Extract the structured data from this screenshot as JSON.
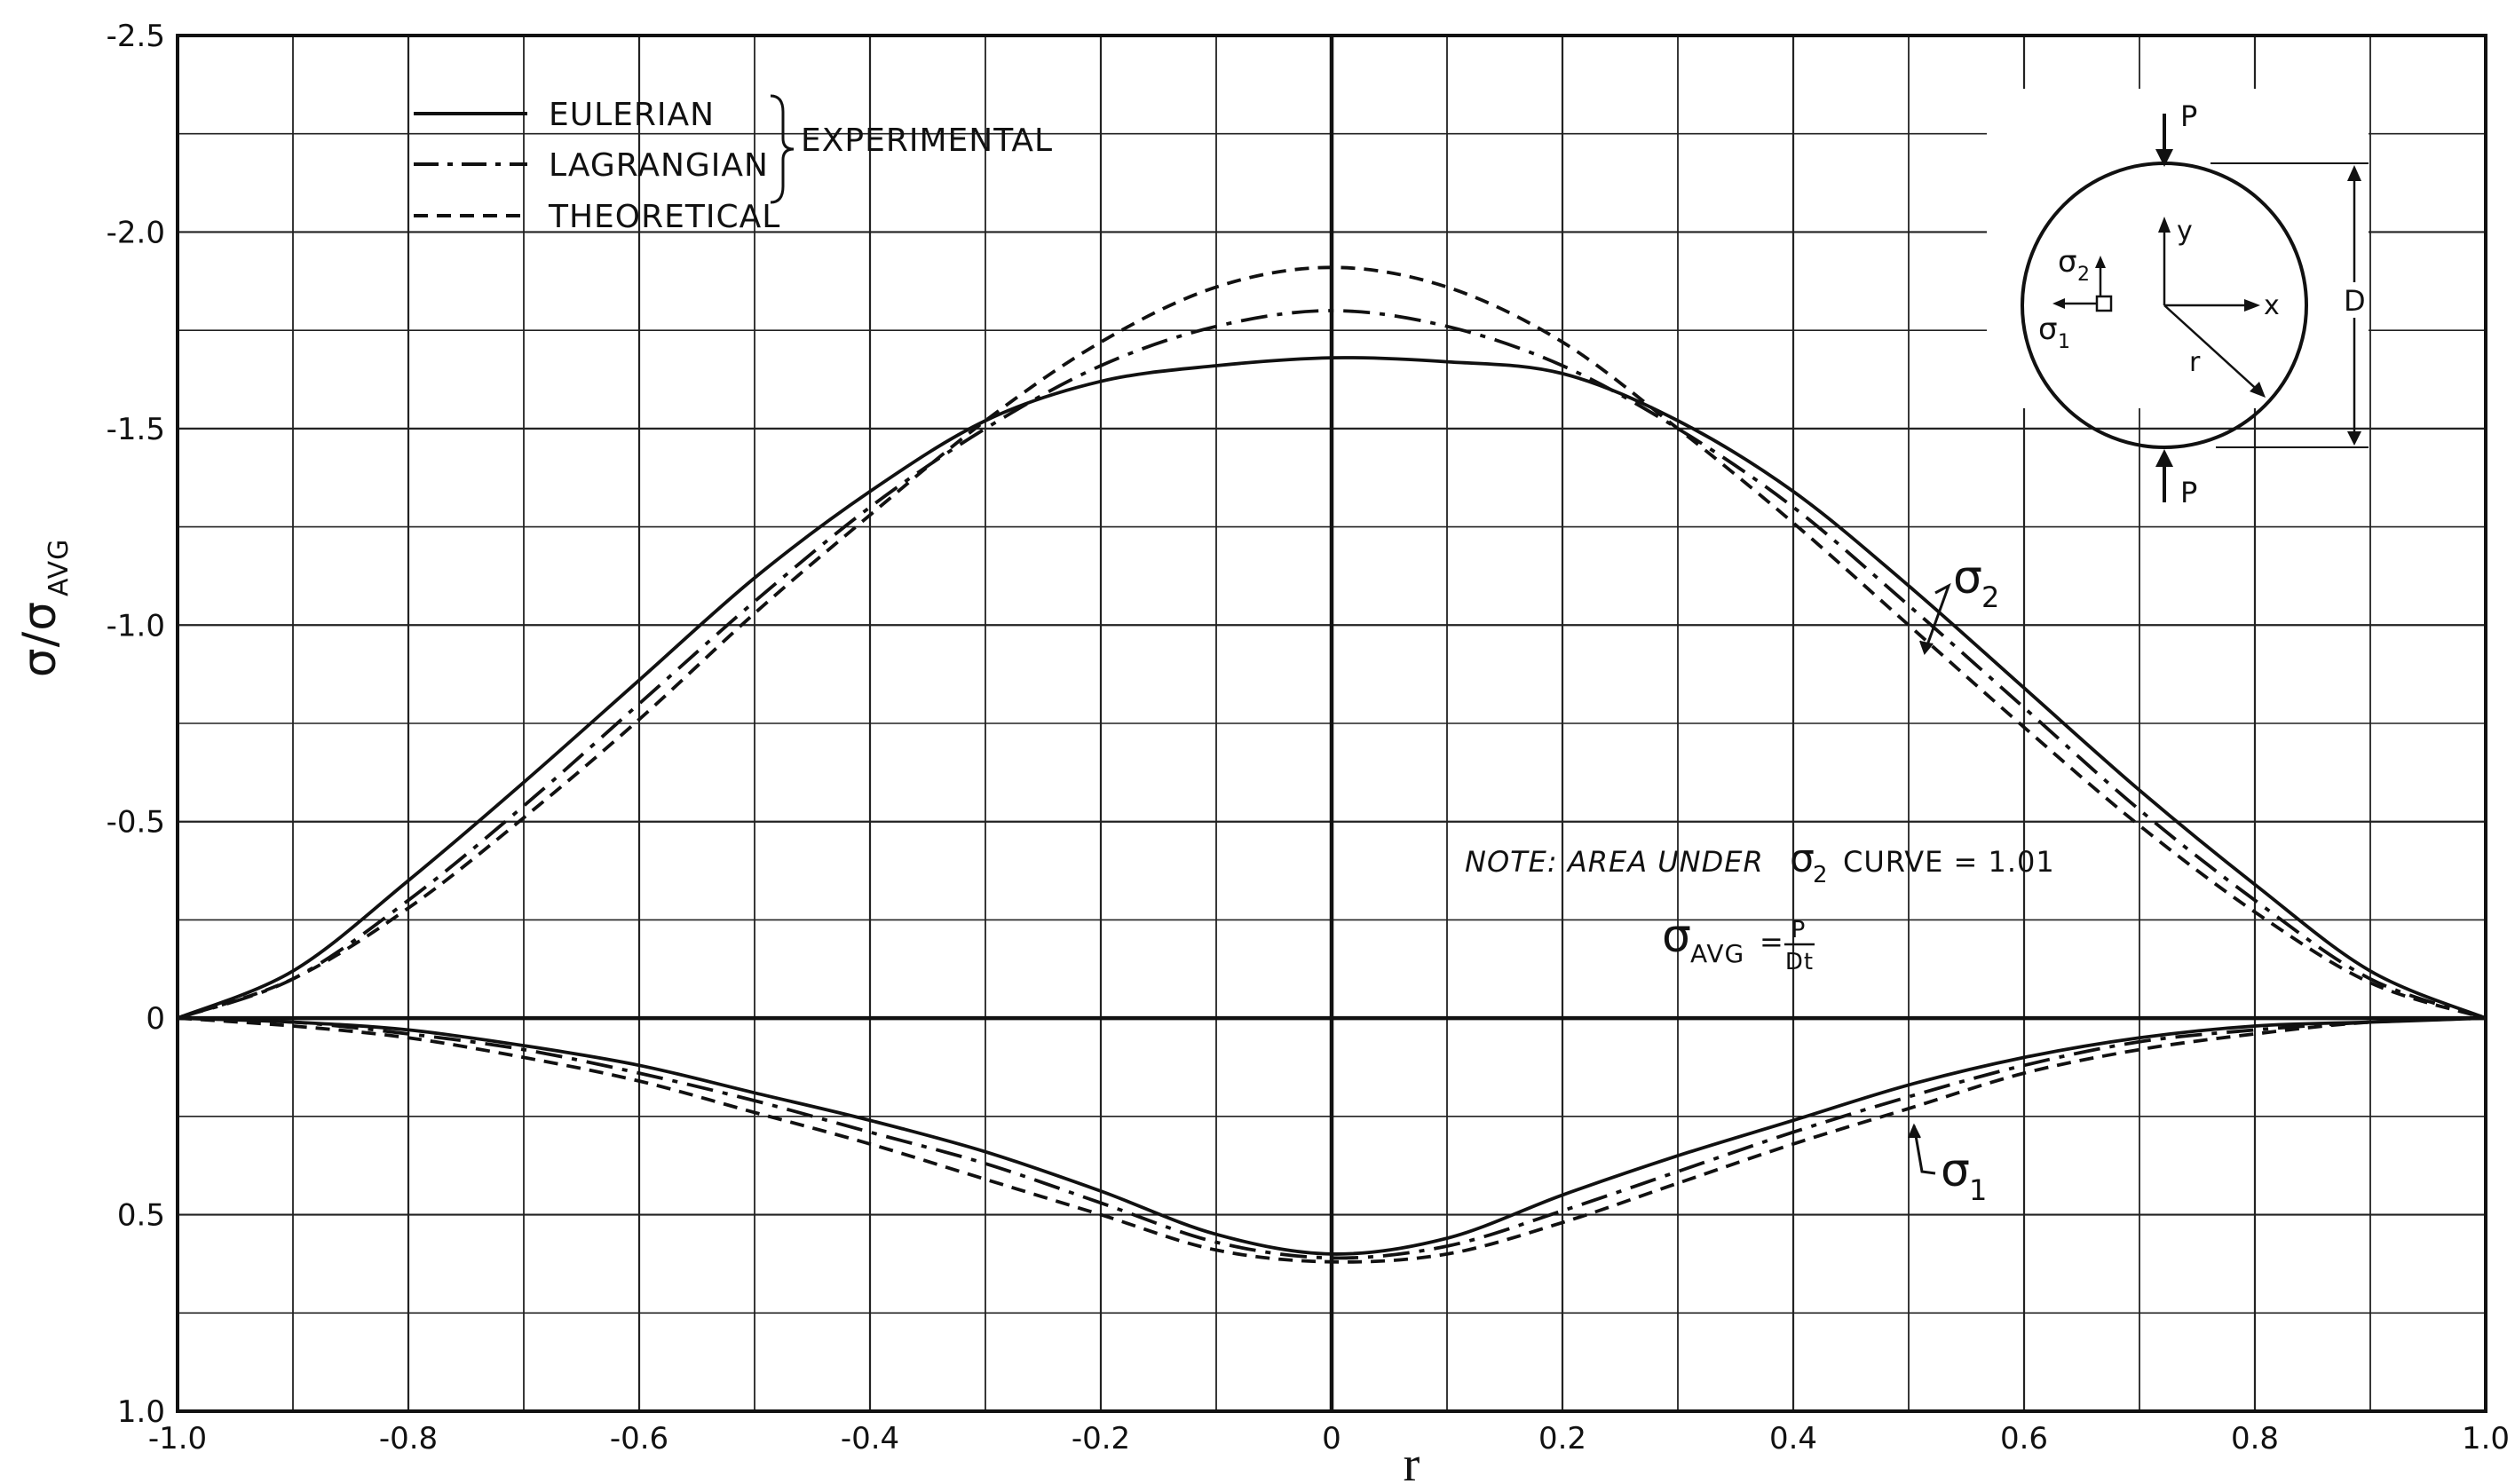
{
  "chart_data": {
    "type": "line",
    "title": "",
    "xlabel": "r",
    "ylabel_main": "σ/σ",
    "ylabel_sub": "AVG",
    "xlim": [
      -1.0,
      1.0
    ],
    "ylim": [
      -2.5,
      1.0
    ],
    "y_inverted": true,
    "grid": true,
    "x_ticks": [
      -1.0,
      -0.8,
      -0.6,
      -0.4,
      -0.2,
      0,
      0.2,
      0.4,
      0.6,
      0.8,
      1.0
    ],
    "x_tick_labels": [
      "-1.0",
      "-0.8",
      "-0.6",
      "-0.4",
      "-0.2",
      "0",
      "0.2",
      "0.4",
      "0.6",
      "0.8",
      "1.0"
    ],
    "y_ticks": [
      -2.5,
      -2.0,
      -1.5,
      -1.0,
      -0.5,
      0,
      0.5,
      1.0
    ],
    "y_tick_labels": [
      "-2.5",
      "-2.0",
      "-1.5",
      "-1.0",
      "-0.5",
      "0",
      "0.5",
      "1.0"
    ],
    "legend": {
      "position": "top-left",
      "entries": [
        {
          "name": "EULERIAN",
          "style": "solid"
        },
        {
          "name": "LAGRANGIAN",
          "style": "dashdot"
        },
        {
          "name": "THEORETICAL",
          "style": "dashed"
        }
      ],
      "group_label": "EXPERIMENTAL"
    },
    "series": [
      {
        "name": "EULERIAN σ2",
        "style": "solid",
        "x": [
          -1.0,
          -0.9,
          -0.8,
          -0.7,
          -0.6,
          -0.5,
          -0.4,
          -0.3,
          -0.2,
          -0.1,
          0.0,
          0.1,
          0.2,
          0.3,
          0.4,
          0.5,
          0.6,
          0.7,
          0.8,
          0.9,
          1.0
        ],
        "y": [
          0.0,
          -0.12,
          -0.35,
          -0.6,
          -0.86,
          -1.12,
          -1.34,
          -1.52,
          -1.62,
          -1.66,
          -1.68,
          -1.67,
          -1.64,
          -1.52,
          -1.34,
          -1.1,
          -0.84,
          -0.58,
          -0.34,
          -0.12,
          0.0
        ]
      },
      {
        "name": "LAGRANGIAN σ2",
        "style": "dashdot",
        "x": [
          -1.0,
          -0.9,
          -0.8,
          -0.7,
          -0.6,
          -0.5,
          -0.4,
          -0.3,
          -0.2,
          -0.1,
          0.0,
          0.1,
          0.2,
          0.3,
          0.4,
          0.5,
          0.6,
          0.7,
          0.8,
          0.9,
          1.0
        ],
        "y": [
          0.0,
          -0.1,
          -0.3,
          -0.54,
          -0.8,
          -1.06,
          -1.3,
          -1.5,
          -1.66,
          -1.76,
          -1.8,
          -1.76,
          -1.66,
          -1.5,
          -1.3,
          -1.05,
          -0.79,
          -0.53,
          -0.3,
          -0.1,
          0.0
        ]
      },
      {
        "name": "THEORETICAL σ2",
        "style": "dashed",
        "x": [
          -1.0,
          -0.9,
          -0.8,
          -0.7,
          -0.6,
          -0.5,
          -0.4,
          -0.3,
          -0.2,
          -0.1,
          0.0,
          0.1,
          0.2,
          0.3,
          0.4,
          0.5,
          0.6,
          0.7,
          0.8,
          0.9,
          1.0
        ],
        "y": [
          0.0,
          -0.1,
          -0.28,
          -0.51,
          -0.76,
          -1.03,
          -1.28,
          -1.52,
          -1.72,
          -1.86,
          -1.91,
          -1.86,
          -1.72,
          -1.5,
          -1.26,
          -1.0,
          -0.74,
          -0.49,
          -0.27,
          -0.09,
          0.0
        ]
      },
      {
        "name": "EULERIAN σ1",
        "style": "solid",
        "x": [
          -1.0,
          -0.9,
          -0.8,
          -0.7,
          -0.6,
          -0.5,
          -0.4,
          -0.3,
          -0.2,
          -0.1,
          0.0,
          0.1,
          0.2,
          0.3,
          0.4,
          0.5,
          0.6,
          0.7,
          0.8,
          0.9,
          1.0
        ],
        "y": [
          0.0,
          0.01,
          0.03,
          0.07,
          0.12,
          0.19,
          0.26,
          0.34,
          0.44,
          0.55,
          0.6,
          0.56,
          0.45,
          0.35,
          0.26,
          0.17,
          0.1,
          0.05,
          0.02,
          0.01,
          0.0
        ]
      },
      {
        "name": "LAGRANGIAN σ1",
        "style": "dashdot",
        "x": [
          -1.0,
          -0.9,
          -0.8,
          -0.7,
          -0.6,
          -0.5,
          -0.4,
          -0.3,
          -0.2,
          -0.1,
          0.0,
          0.1,
          0.2,
          0.3,
          0.4,
          0.5,
          0.6,
          0.7,
          0.8,
          0.9,
          1.0
        ],
        "y": [
          0.0,
          0.01,
          0.04,
          0.08,
          0.14,
          0.21,
          0.29,
          0.37,
          0.47,
          0.57,
          0.61,
          0.58,
          0.49,
          0.39,
          0.29,
          0.2,
          0.12,
          0.06,
          0.03,
          0.01,
          0.0
        ]
      },
      {
        "name": "THEORETICAL σ1",
        "style": "dashed",
        "x": [
          -1.0,
          -0.9,
          -0.8,
          -0.7,
          -0.6,
          -0.5,
          -0.4,
          -0.3,
          -0.2,
          -0.1,
          0.0,
          0.1,
          0.2,
          0.3,
          0.4,
          0.5,
          0.6,
          0.7,
          0.8,
          0.9,
          1.0
        ],
        "y": [
          0.0,
          0.02,
          0.05,
          0.1,
          0.16,
          0.24,
          0.32,
          0.41,
          0.5,
          0.59,
          0.62,
          0.6,
          0.52,
          0.42,
          0.32,
          0.23,
          0.14,
          0.08,
          0.04,
          0.01,
          0.0
        ]
      }
    ],
    "annotations": {
      "sigma2_label": "σ",
      "sigma2_sub": "2",
      "sigma1_label": "σ",
      "sigma1_sub": "1",
      "note": "NOTE:  AREA UNDER",
      "note_curve": "CURVE = 1.01",
      "formula_lhs": "σ",
      "formula_sub": "AVG",
      "formula_eq": "=",
      "formula_num": "P",
      "formula_den": "Dt"
    },
    "inset": {
      "load_label_top": "P",
      "load_label_bottom": "P",
      "dimension_label": "D",
      "axis_x_label": "x",
      "axis_y_label": "y",
      "radius_label": "r",
      "stress_2_label": "σ",
      "stress_2_sub": "2",
      "stress_1_label": "σ",
      "stress_1_sub": "1"
    }
  }
}
